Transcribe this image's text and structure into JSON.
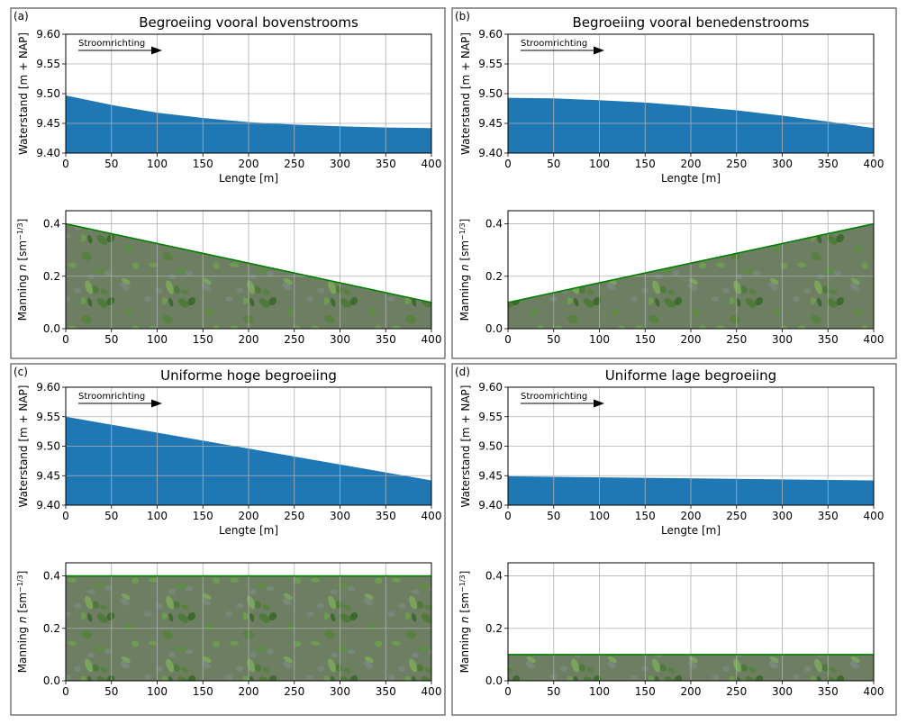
{
  "figure": {
    "panels": [
      {
        "letter": "(a)",
        "title": "Begroeiing vooral bovenstrooms"
      },
      {
        "letter": "(b)",
        "title": "Begroeiing vooral benedenstrooms"
      },
      {
        "letter": "(c)",
        "title": "Uniforme hoge begroeiing"
      },
      {
        "letter": "(d)",
        "title": "Uniforme lage begroeiing"
      }
    ],
    "arrow_label": "Stroomrichting",
    "water_ylabel": "Waterstand [m + NAP]",
    "manning_ylabel_prefix": "Manning ",
    "manning_ylabel_var": "n",
    "manning_ylabel_unit": " [sm",
    "manning_ylabel_exp": "−1/3",
    "manning_ylabel_close": "]",
    "water_xlabel": "Lengte [m]",
    "colors": {
      "water_fill": "#1f77b4",
      "manning_line": "#008000",
      "vegetation_base": "#5d7a45",
      "grid": "#b0b0b0"
    }
  },
  "chart_data": [
    {
      "panel": "a",
      "type": "area",
      "title": "Begroeiing vooral bovenstrooms",
      "x": [
        0,
        50,
        100,
        150,
        200,
        250,
        300,
        350,
        400
      ],
      "y": [
        9.497,
        9.481,
        9.468,
        9.459,
        9.452,
        9.448,
        9.445,
        9.443,
        9.442
      ],
      "xlabel": "Lengte [m]",
      "ylabel": "Waterstand [m + NAP]",
      "xlim": [
        0,
        400
      ],
      "ylim": [
        9.4,
        9.6
      ],
      "grid": true
    },
    {
      "panel": "a",
      "type": "area",
      "x": [
        0,
        400
      ],
      "y": [
        0.4,
        0.1
      ],
      "xlabel": "",
      "ylabel": "Manning n [sm−1/3]",
      "xlim": [
        0,
        400
      ],
      "ylim": [
        0,
        0.45
      ],
      "grid": true
    },
    {
      "panel": "b",
      "type": "area",
      "title": "Begroeiing vooral benedenstrooms",
      "x": [
        0,
        50,
        100,
        150,
        200,
        250,
        300,
        350,
        400
      ],
      "y": [
        9.493,
        9.492,
        9.489,
        9.485,
        9.479,
        9.472,
        9.463,
        9.453,
        9.442
      ],
      "xlabel": "Lengte [m]",
      "ylabel": "Waterstand [m + NAP]",
      "xlim": [
        0,
        400
      ],
      "ylim": [
        9.4,
        9.6
      ],
      "grid": true
    },
    {
      "panel": "b",
      "type": "area",
      "x": [
        0,
        400
      ],
      "y": [
        0.1,
        0.4
      ],
      "xlabel": "",
      "ylabel": "Manning n [sm−1/3]",
      "xlim": [
        0,
        400
      ],
      "ylim": [
        0,
        0.45
      ],
      "grid": true
    },
    {
      "panel": "c",
      "type": "area",
      "title": "Uniforme hoge begroeiing",
      "x": [
        0,
        400
      ],
      "y": [
        9.55,
        9.442
      ],
      "xlabel": "Lengte [m]",
      "ylabel": "Waterstand [m + NAP]",
      "xlim": [
        0,
        400
      ],
      "ylim": [
        9.4,
        9.6
      ],
      "grid": true
    },
    {
      "panel": "c",
      "type": "area",
      "x": [
        0,
        400
      ],
      "y": [
        0.4,
        0.4
      ],
      "xlabel": "",
      "ylabel": "Manning n [sm−1/3]",
      "xlim": [
        0,
        400
      ],
      "ylim": [
        0,
        0.45
      ],
      "grid": true
    },
    {
      "panel": "d",
      "type": "area",
      "title": "Uniforme lage begroeiing",
      "x": [
        0,
        400
      ],
      "y": [
        9.449,
        9.442
      ],
      "xlabel": "Lengte [m]",
      "ylabel": "Waterstand [m + NAP]",
      "xlim": [
        0,
        400
      ],
      "ylim": [
        9.4,
        9.6
      ],
      "grid": true
    },
    {
      "panel": "d",
      "type": "area",
      "x": [
        0,
        400
      ],
      "y": [
        0.1,
        0.1
      ],
      "xlabel": "",
      "ylabel": "Manning n [sm−1/3]",
      "xlim": [
        0,
        400
      ],
      "ylim": [
        0,
        0.45
      ],
      "grid": true
    }
  ],
  "ticks": {
    "x": [
      "0",
      "50",
      "100",
      "150",
      "200",
      "250",
      "300",
      "350",
      "400"
    ],
    "water_y": [
      "9.40",
      "9.45",
      "9.50",
      "9.55",
      "9.60"
    ],
    "manning_y": [
      "0.0",
      "0.2",
      "0.4"
    ]
  }
}
